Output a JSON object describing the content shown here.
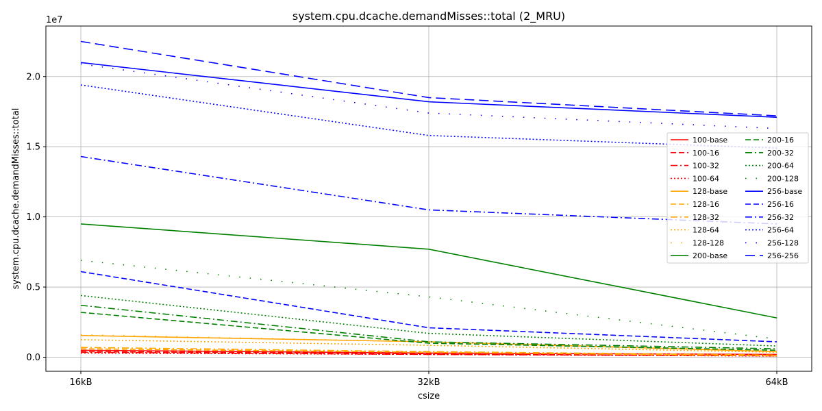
{
  "chart_data": {
    "type": "line",
    "title": "system.cpu.dcache.demandMisses::total (2_MRU)",
    "xlabel": "csize",
    "ylabel": "system.cpu.dcache.demandMisses::total",
    "y_offset_label": "1e7",
    "categories": [
      "16kB",
      "32kB",
      "64kB"
    ],
    "y_ticks": [
      "0.0",
      "0.5",
      "1.0",
      "1.5",
      "2.0"
    ],
    "y_tick_values": [
      0,
      0.5,
      1.0,
      1.5,
      2.0
    ],
    "ylim": [
      -0.1,
      2.36
    ],
    "grid": true,
    "legend_position": "right",
    "series": [
      {
        "name": "100-base",
        "color": "#ff0000",
        "dash": "solid",
        "values": [
          0.05,
          0.03,
          0.02
        ]
      },
      {
        "name": "100-16",
        "color": "#ff0000",
        "dash": "dashed",
        "values": [
          0.04,
          0.025,
          0.01
        ]
      },
      {
        "name": "100-32",
        "color": "#ff0000",
        "dash": "dashdot",
        "values": [
          0.035,
          0.02,
          0.01
        ]
      },
      {
        "name": "100-64",
        "color": "#ff0000",
        "dash": "dotted",
        "values": [
          0.03,
          0.02,
          0.008
        ]
      },
      {
        "name": "128-base",
        "color": "#ffa500",
        "dash": "solid",
        "values": [
          0.155,
          0.11,
          0.04
        ]
      },
      {
        "name": "128-16",
        "color": "#ffa500",
        "dash": "dashed",
        "values": [
          0.06,
          0.035,
          0.01
        ]
      },
      {
        "name": "128-32",
        "color": "#ffa500",
        "dash": "dashdot",
        "values": [
          0.07,
          0.04,
          0.015
        ]
      },
      {
        "name": "128-64",
        "color": "#ffa500",
        "dash": "dotted",
        "values": [
          0.125,
          0.085,
          0.035
        ]
      },
      {
        "name": "128-128",
        "color": "#ffa500",
        "dash": "sparse",
        "values": [
          0.16,
          0.11,
          0.045
        ]
      },
      {
        "name": "200-base",
        "color": "#008000",
        "dash": "solid",
        "values": [
          0.95,
          0.77,
          0.28
        ]
      },
      {
        "name": "200-16",
        "color": "#008000",
        "dash": "dashed",
        "values": [
          0.32,
          0.1,
          0.05
        ]
      },
      {
        "name": "200-32",
        "color": "#008000",
        "dash": "dashdot",
        "values": [
          0.37,
          0.11,
          0.06
        ]
      },
      {
        "name": "200-64",
        "color": "#008000",
        "dash": "dotted",
        "values": [
          0.44,
          0.17,
          0.08
        ]
      },
      {
        "name": "200-128",
        "color": "#008000",
        "dash": "sparse",
        "values": [
          0.69,
          0.43,
          0.13
        ]
      },
      {
        "name": "256-base",
        "color": "#0000ff",
        "dash": "solid",
        "values": [
          2.1,
          1.82,
          1.71
        ]
      },
      {
        "name": "256-16",
        "color": "#0000ff",
        "dash": "dashed",
        "values": [
          0.61,
          0.21,
          0.11
        ]
      },
      {
        "name": "256-32",
        "color": "#0000ff",
        "dash": "dashdot",
        "values": [
          1.43,
          1.05,
          0.95
        ]
      },
      {
        "name": "256-64",
        "color": "#0000ff",
        "dash": "dotted",
        "values": [
          1.94,
          1.58,
          1.49
        ]
      },
      {
        "name": "256-128",
        "color": "#0000ff",
        "dash": "sparse",
        "values": [
          2.09,
          1.74,
          1.63
        ]
      },
      {
        "name": "256-256",
        "color": "#0000ff",
        "dash": "longdash",
        "values": [
          2.25,
          1.85,
          1.72
        ]
      }
    ]
  }
}
